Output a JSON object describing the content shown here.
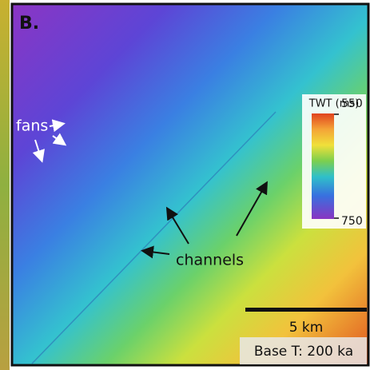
{
  "panel_label": "B.",
  "annotations": {
    "fans": "fans",
    "channels": "channels"
  },
  "colorbar": {
    "title": "TWT (ms)",
    "top_label": "550",
    "bottom_label": "750"
  },
  "scale_bar": {
    "label": "5 km"
  },
  "caption": "Base T: 200 ka"
}
